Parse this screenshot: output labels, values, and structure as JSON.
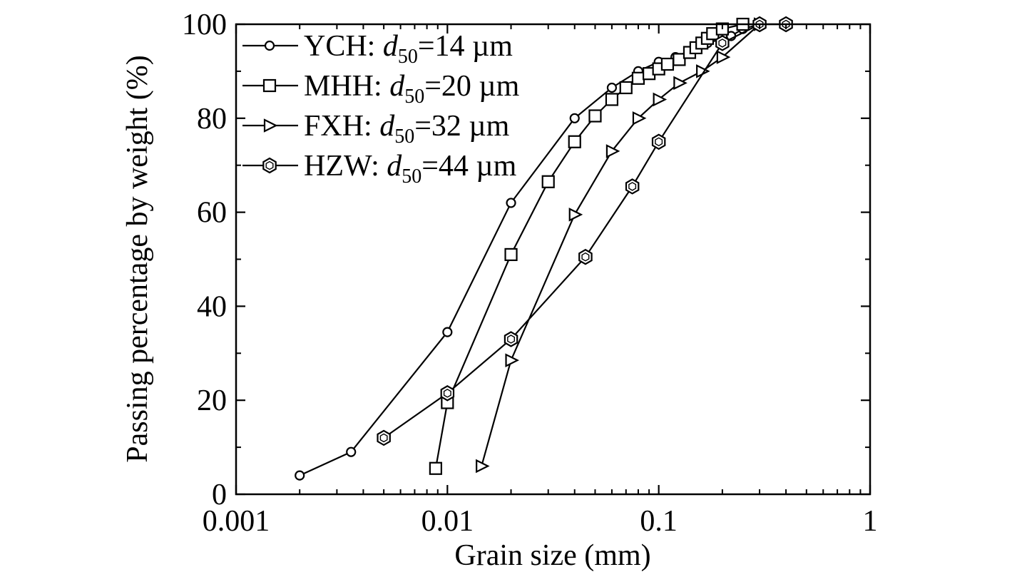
{
  "chart_data": {
    "type": "line",
    "title": "",
    "xlabel": "Grain size (mm)",
    "ylabel": "Passing percentage by weight (%)",
    "xscale": "log",
    "xlim": [
      0.001,
      1
    ],
    "ylim": [
      0,
      100
    ],
    "xticks": [
      {
        "value": 0.001,
        "label": "0.001"
      },
      {
        "value": 0.01,
        "label": "0.01"
      },
      {
        "value": 0.1,
        "label": "0.1"
      },
      {
        "value": 1,
        "label": "1"
      }
    ],
    "yticks": [
      {
        "value": 0,
        "label": "0"
      },
      {
        "value": 20,
        "label": "20"
      },
      {
        "value": 40,
        "label": "40"
      },
      {
        "value": 60,
        "label": "60"
      },
      {
        "value": 80,
        "label": "80"
      },
      {
        "value": 100,
        "label": "100"
      }
    ],
    "grid": false,
    "legend_position": "top-left",
    "series": [
      {
        "name": "YCH",
        "legend_d": "d",
        "legend_sub": "50",
        "legend_value": "=14 µm",
        "marker": "circle",
        "color": "#000000",
        "x": [
          0.002,
          0.0035,
          0.01,
          0.02,
          0.04,
          0.06,
          0.08,
          0.1,
          0.12,
          0.15,
          0.17,
          0.22,
          0.25,
          0.3
        ],
        "y": [
          4,
          9,
          34.5,
          62,
          80,
          86.5,
          90,
          92,
          93,
          95,
          96,
          97.5,
          99,
          100
        ]
      },
      {
        "name": "MHH",
        "legend_d": "d",
        "legend_sub": "50",
        "legend_value": "=20 µm",
        "marker": "square",
        "color": "#000000",
        "x": [
          0.0088,
          0.01,
          0.02,
          0.03,
          0.04,
          0.05,
          0.06,
          0.07,
          0.08,
          0.09,
          0.1,
          0.11,
          0.125,
          0.14,
          0.15,
          0.16,
          0.17,
          0.18,
          0.2,
          0.25
        ],
        "y": [
          5.5,
          19.5,
          51,
          66.5,
          75,
          80.5,
          84,
          86.5,
          88.5,
          89.5,
          90.5,
          91.5,
          92.5,
          94,
          95,
          96,
          97,
          98,
          99,
          100
        ]
      },
      {
        "name": "FXH",
        "legend_d": "d",
        "legend_sub": "50",
        "legend_value": "=32 µm",
        "marker": "triangle-right",
        "color": "#000000",
        "x": [
          0.0145,
          0.02,
          0.04,
          0.06,
          0.08,
          0.1,
          0.125,
          0.16,
          0.2,
          0.3
        ],
        "y": [
          6,
          28.5,
          59.5,
          73,
          80,
          84,
          87.5,
          90,
          93,
          100
        ]
      },
      {
        "name": "HZW",
        "legend_d": "d",
        "legend_sub": "50",
        "legend_value": "=44 µm",
        "marker": "hexagon",
        "color": "#000000",
        "x": [
          0.005,
          0.01,
          0.02,
          0.045,
          0.075,
          0.1,
          0.2,
          0.3,
          0.4
        ],
        "y": [
          12,
          21.5,
          33,
          50.5,
          65.5,
          75,
          96,
          100,
          100
        ]
      }
    ]
  }
}
